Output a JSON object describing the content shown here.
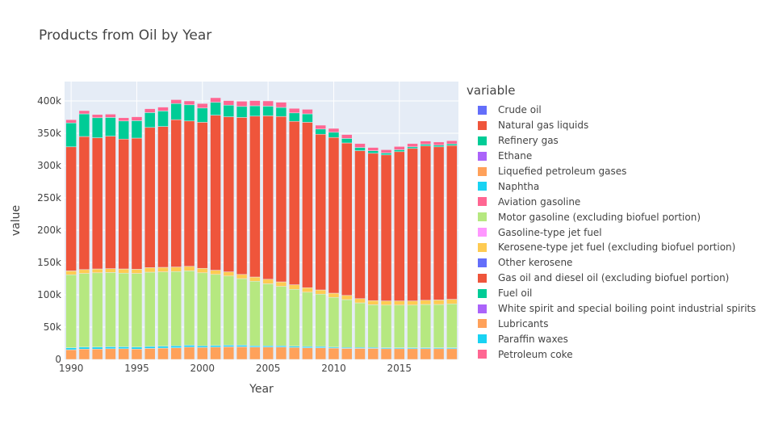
{
  "chart_data": {
    "type": "bar",
    "stacked": true,
    "title": "Products from Oil by Year",
    "xlabel": "Year",
    "ylabel": "value",
    "legend_title": "variable",
    "legend_position": "right",
    "grid": true,
    "background": "#e5ecf6",
    "xlim": [
      1990,
      2019
    ],
    "ylim": [
      0,
      430000
    ],
    "xticks": [
      1990,
      1995,
      2000,
      2005,
      2010,
      2015
    ],
    "yticks": [
      0,
      50000,
      100000,
      150000,
      200000,
      250000,
      300000,
      350000,
      400000
    ],
    "ytick_labels": [
      "0",
      "50k",
      "100k",
      "150k",
      "200k",
      "250k",
      "300k",
      "350k",
      "400k"
    ],
    "years": [
      1990,
      1991,
      1992,
      1993,
      1994,
      1995,
      1996,
      1997,
      1998,
      1999,
      2000,
      2001,
      2002,
      2003,
      2004,
      2005,
      2006,
      2007,
      2008,
      2009,
      2010,
      2011,
      2012,
      2013,
      2014,
      2015,
      2016,
      2017,
      2018,
      2019
    ],
    "series": [
      {
        "name": "Crude oil",
        "color": "#636efa",
        "values": [
          0,
          0,
          0,
          0,
          0,
          0,
          0,
          0,
          0,
          0,
          0,
          0,
          0,
          0,
          0,
          0,
          0,
          0,
          0,
          0,
          0,
          0,
          0,
          0,
          0,
          0,
          0,
          0,
          0,
          0
        ]
      },
      {
        "name": "Natural gas liquids",
        "color": "#EF553B",
        "values": [
          0,
          0,
          0,
          0,
          0,
          0,
          0,
          0,
          0,
          0,
          0,
          0,
          0,
          0,
          0,
          0,
          0,
          0,
          0,
          0,
          0,
          0,
          0,
          0,
          0,
          0,
          0,
          0,
          0,
          0
        ]
      },
      {
        "name": "Refinery gas",
        "color": "#00cc96",
        "values": [
          0,
          0,
          0,
          0,
          0,
          0,
          0,
          0,
          0,
          0,
          0,
          0,
          0,
          0,
          0,
          0,
          0,
          0,
          0,
          0,
          0,
          0,
          0,
          0,
          0,
          0,
          0,
          0,
          0,
          0
        ]
      },
      {
        "name": "Ethane",
        "color": "#ab63fa",
        "values": [
          0,
          0,
          0,
          0,
          0,
          0,
          0,
          0,
          0,
          0,
          0,
          0,
          0,
          0,
          0,
          0,
          0,
          0,
          0,
          0,
          0,
          0,
          0,
          0,
          0,
          0,
          0,
          0,
          0,
          0
        ]
      },
      {
        "name": "Liquefied petroleum gases",
        "color": "#FFA15A",
        "values": [
          15000,
          16000,
          16000,
          16500,
          16500,
          16000,
          17000,
          17500,
          18000,
          19000,
          18500,
          19000,
          19500,
          19500,
          19000,
          19000,
          19000,
          18500,
          18000,
          18000,
          17500,
          17000,
          17000,
          17000,
          16500,
          16500,
          16500,
          16500,
          16500,
          16500
        ]
      },
      {
        "name": "Naphtha",
        "color": "#19d3f3",
        "values": [
          3000,
          3000,
          3000,
          3000,
          3000,
          3000,
          3000,
          3000,
          3000,
          3000,
          2500,
          2500,
          2500,
          2500,
          2000,
          2000,
          2000,
          2000,
          2000,
          2000,
          1500,
          1500,
          1500,
          1500,
          1500,
          1500,
          1500,
          1500,
          1500,
          1500
        ]
      },
      {
        "name": "Aviation gasoline",
        "color": "#FF6692",
        "values": [
          0,
          0,
          0,
          0,
          0,
          0,
          0,
          0,
          0,
          0,
          0,
          0,
          0,
          0,
          0,
          0,
          0,
          0,
          0,
          0,
          0,
          0,
          0,
          0,
          0,
          0,
          0,
          0,
          0,
          0
        ]
      },
      {
        "name": "Motor gasoline (excluding biofuel portion)",
        "color": "#B6E880",
        "values": [
          113000,
          114000,
          115000,
          115000,
          114000,
          114000,
          115000,
          115000,
          115000,
          115000,
          113000,
          110000,
          107000,
          103000,
          100000,
          96000,
          92000,
          88000,
          84000,
          81000,
          77000,
          74000,
          69000,
          66000,
          66000,
          66000,
          66000,
          67000,
          67000,
          68000
        ]
      },
      {
        "name": "Gasoline-type jet fuel",
        "color": "#FF97FF",
        "values": [
          0,
          0,
          0,
          0,
          0,
          0,
          0,
          0,
          0,
          0,
          0,
          0,
          0,
          0,
          0,
          0,
          0,
          0,
          0,
          0,
          0,
          0,
          0,
          0,
          0,
          0,
          0,
          0,
          0,
          0
        ]
      },
      {
        "name": "Kerosene-type jet fuel (excluding biofuel portion)",
        "color": "#FECB52",
        "values": [
          6000,
          6000,
          6000,
          6000,
          6500,
          6500,
          7000,
          7000,
          7000,
          7000,
          7000,
          6500,
          6500,
          6500,
          6500,
          7000,
          7000,
          7000,
          7000,
          6500,
          6500,
          6500,
          6500,
          6500,
          6500,
          6500,
          6500,
          6500,
          7000,
          7000
        ]
      },
      {
        "name": "Other kerosene",
        "color": "#636efa",
        "values": [
          0,
          0,
          0,
          0,
          0,
          0,
          0,
          0,
          0,
          0,
          0,
          0,
          0,
          0,
          0,
          0,
          0,
          0,
          0,
          0,
          0,
          0,
          0,
          0,
          0,
          0,
          0,
          0,
          0,
          0
        ]
      },
      {
        "name": "Gas oil and diesel oil (excluding biofuel portion)",
        "color": "#EF553B",
        "values": [
          192000,
          206000,
          203000,
          205000,
          201000,
          203000,
          217000,
          218000,
          228000,
          225000,
          226000,
          240000,
          240000,
          243000,
          249000,
          253000,
          256000,
          253000,
          256000,
          241000,
          241000,
          236000,
          229000,
          228000,
          226000,
          231000,
          236000,
          239000,
          237000,
          238000
        ]
      },
      {
        "name": "Fuel oil",
        "color": "#00cc96",
        "values": [
          37000,
          35000,
          31000,
          29000,
          28000,
          27000,
          23000,
          24000,
          25000,
          25000,
          22000,
          20000,
          18000,
          17000,
          16000,
          15000,
          14000,
          13000,
          13000,
          8000,
          8000,
          7000,
          5000,
          4000,
          3000,
          3000,
          2500,
          2500,
          2500,
          2500
        ]
      },
      {
        "name": "White spirit and special boiling point industrial spirits",
        "color": "#ab63fa",
        "values": [
          0,
          0,
          0,
          0,
          0,
          0,
          0,
          0,
          0,
          0,
          0,
          0,
          0,
          0,
          0,
          0,
          0,
          0,
          0,
          0,
          0,
          0,
          0,
          0,
          0,
          0,
          0,
          0,
          0,
          0
        ]
      },
      {
        "name": "Lubricants",
        "color": "#FFA15A",
        "values": [
          0,
          0,
          0,
          0,
          0,
          0,
          0,
          0,
          0,
          0,
          0,
          0,
          0,
          0,
          0,
          0,
          0,
          0,
          0,
          0,
          0,
          0,
          0,
          0,
          0,
          0,
          0,
          0,
          0,
          0
        ]
      },
      {
        "name": "Paraffin waxes",
        "color": "#19d3f3",
        "values": [
          0,
          0,
          0,
          0,
          0,
          0,
          0,
          0,
          0,
          0,
          0,
          0,
          0,
          0,
          0,
          0,
          0,
          0,
          0,
          0,
          0,
          0,
          0,
          0,
          0,
          0,
          0,
          0,
          0,
          0
        ]
      },
      {
        "name": "Petroleum coke",
        "color": "#FF6692",
        "values": [
          5000,
          5000,
          5000,
          5000,
          5000,
          6000,
          6000,
          6000,
          6000,
          6000,
          7000,
          7000,
          7000,
          8000,
          8000,
          8000,
          8000,
          7000,
          7000,
          6000,
          6000,
          6000,
          6000,
          5000,
          5000,
          5000,
          5000,
          5000,
          5000,
          5000
        ]
      }
    ]
  }
}
